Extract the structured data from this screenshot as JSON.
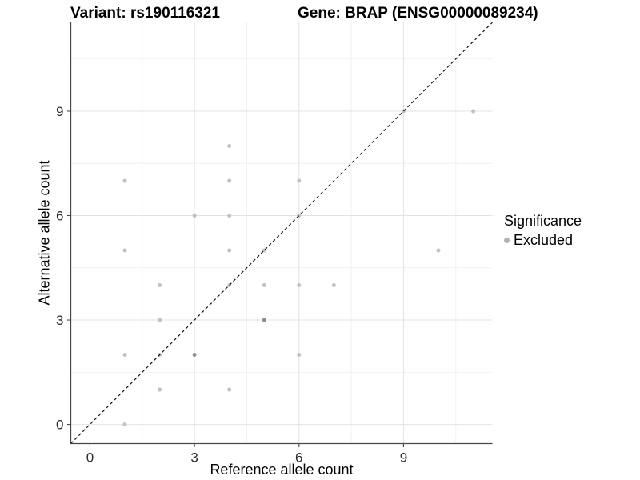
{
  "chart_data": {
    "type": "scatter",
    "title_left": "Variant: rs190116321",
    "title_right": "Gene: BRAP (ENSG00000089234)",
    "xlabel": "Reference allele count",
    "ylabel": "Alternative allele count",
    "xlim": [
      -0.55,
      11.55
    ],
    "ylim": [
      -0.55,
      11.55
    ],
    "x_major_ticks": [
      0,
      3,
      6,
      9
    ],
    "y_major_ticks": [
      0,
      3,
      6,
      9
    ],
    "x_minor_ticks": [
      1.5,
      4.5,
      7.5,
      10.5
    ],
    "y_minor_ticks": [
      1.5,
      4.5,
      7.5,
      10.5
    ],
    "grid": "major+minor",
    "reference_line": {
      "kind": "identity y=x",
      "style": "dashed",
      "color": "#111111"
    },
    "legend": {
      "title": "Significance",
      "position": "right",
      "items": [
        {
          "label": "Excluded",
          "marker_color": "#b3b3b3"
        }
      ]
    },
    "series": [
      {
        "name": "Excluded",
        "marker": "circle",
        "color": "#c1c1c1",
        "overplot_color": "#8f8f8f",
        "points": [
          {
            "x": 1,
            "y": 0,
            "n": 1
          },
          {
            "x": 1,
            "y": 2,
            "n": 1
          },
          {
            "x": 1,
            "y": 5,
            "n": 1
          },
          {
            "x": 1,
            "y": 7,
            "n": 1
          },
          {
            "x": 2,
            "y": 1,
            "n": 1
          },
          {
            "x": 2,
            "y": 2,
            "n": 1
          },
          {
            "x": 2,
            "y": 3,
            "n": 1
          },
          {
            "x": 2,
            "y": 4,
            "n": 1
          },
          {
            "x": 3,
            "y": 2,
            "n": 2
          },
          {
            "x": 3,
            "y": 6,
            "n": 1
          },
          {
            "x": 4,
            "y": 1,
            "n": 1
          },
          {
            "x": 4,
            "y": 4,
            "n": 1
          },
          {
            "x": 4,
            "y": 5,
            "n": 1
          },
          {
            "x": 4,
            "y": 6,
            "n": 1
          },
          {
            "x": 4,
            "y": 7,
            "n": 1
          },
          {
            "x": 4,
            "y": 8,
            "n": 1
          },
          {
            "x": 5,
            "y": 3,
            "n": 2
          },
          {
            "x": 5,
            "y": 4,
            "n": 1
          },
          {
            "x": 5,
            "y": 5,
            "n": 1
          },
          {
            "x": 6,
            "y": 2,
            "n": 1
          },
          {
            "x": 6,
            "y": 4,
            "n": 1
          },
          {
            "x": 6,
            "y": 6,
            "n": 1
          },
          {
            "x": 6,
            "y": 7,
            "n": 1
          },
          {
            "x": 7,
            "y": 4,
            "n": 1
          },
          {
            "x": 9,
            "y": 9,
            "n": 1
          },
          {
            "x": 10,
            "y": 5,
            "n": 1
          },
          {
            "x": 11,
            "y": 9,
            "n": 1
          }
        ]
      }
    ]
  },
  "colors": {
    "background": "#ffffff",
    "grid_major": "#e3e3e3",
    "grid_minor": "#f0f0f0",
    "axis_line": "#474747",
    "tick_label": "#2e2e2e"
  }
}
